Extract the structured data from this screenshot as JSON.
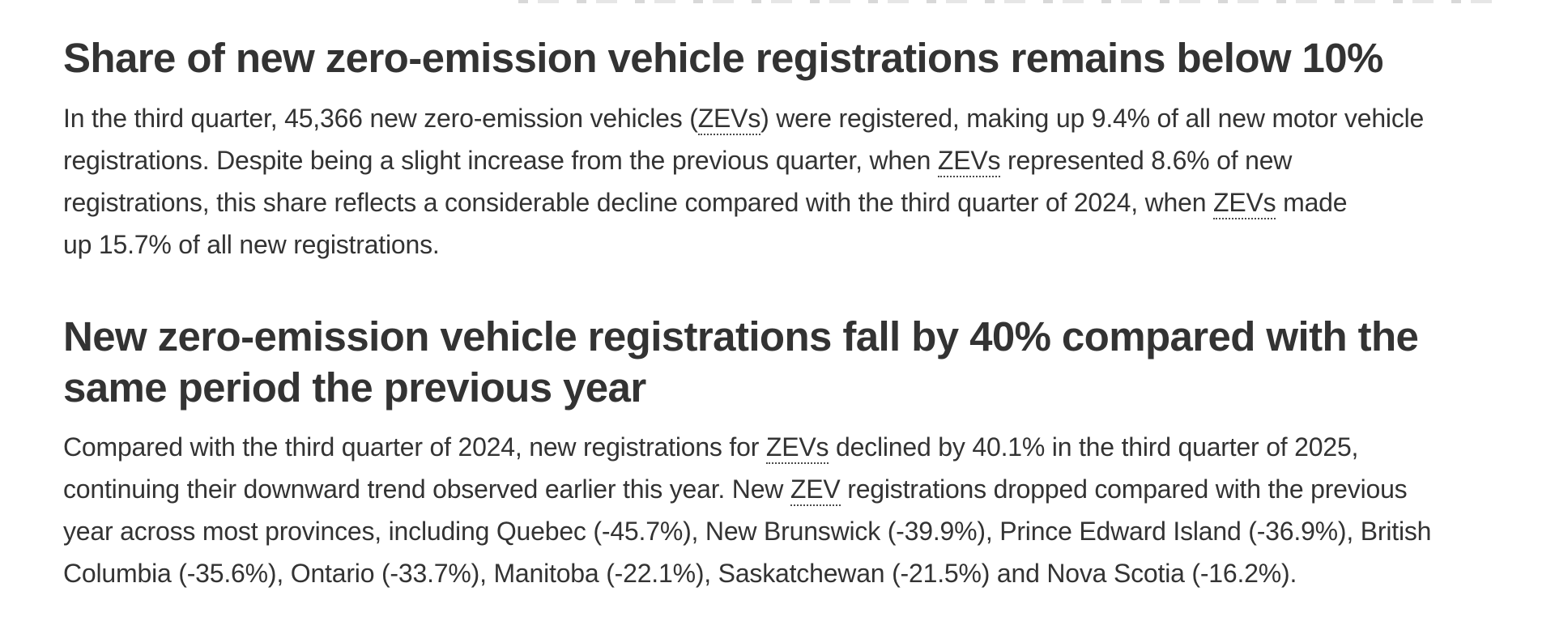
{
  "page": {
    "background": "#ffffff",
    "text_color": "#333333",
    "abbr_underline_color": "#4a4a4a"
  },
  "article": {
    "abbreviation_pattern": "ZEVs?",
    "sections": [
      {
        "id": "zev-share",
        "heading_lines": [
          "Share of new zero-emission vehicle registrations remains below 10%"
        ],
        "paragraph_lines": [
          "In the third quarter, 45,366 new zero-emission vehicles (ZEVs) were registered, making up 9.4% of all new motor vehicle",
          "registrations. Despite being a slight increase from the previous quarter, when ZEVs represented 8.6% of new",
          "registrations, this share reflects a considerable decline compared with the third quarter of 2024, when ZEVs made",
          "up 15.7% of all new registrations."
        ]
      },
      {
        "id": "zev-decline",
        "heading_lines": [
          "New zero-emission vehicle registrations fall by 40% compared with the",
          "same period the previous year"
        ],
        "paragraph_lines": [
          "Compared with the third quarter of 2024, new registrations for ZEVs declined by 40.1% in the third quarter of 2025,",
          "continuing their downward trend observed earlier this year. New ZEV registrations dropped compared with the previous",
          "year across most provinces, including Quebec (-45.7%), New Brunswick (-39.9%), Prince Edward Island (-36.9%), British",
          "Columbia (-35.6%), Ontario (-33.7%), Manitoba (-22.1%), Saskatchewan (-21.5%) and Nova Scotia (-16.2%)."
        ]
      }
    ]
  }
}
